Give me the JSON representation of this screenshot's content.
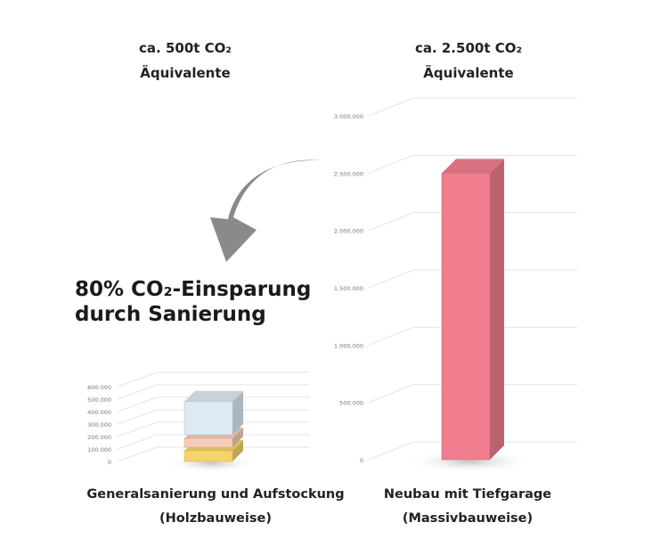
{
  "left_header": {
    "line1": "ca. 500t CO₂",
    "line2": "Äquivalente"
  },
  "right_header": {
    "line1": "ca. 2.500t CO₂",
    "line2": "Äquivalente"
  },
  "headline": {
    "line1": "80% CO₂-Einsparung",
    "line2": "durch Sanierung"
  },
  "left_caption": {
    "line1": "Generalsanierung und Aufstockung",
    "line2": "(Holzbauweise)"
  },
  "right_caption": {
    "line1": "Neubau mit Tiefgarage",
    "line2": "(Massivbauweise)"
  },
  "colors": {
    "arrow": "#8a8a8a",
    "left_top": "#dde9f3",
    "left_mid": "#f6cdb6",
    "left_bottom": "#f7d46a",
    "right_bar": "#f07e8e"
  },
  "chart_data": [
    {
      "type": "bar",
      "stacked": true,
      "title": "",
      "xlabel": "",
      "ylabel": "",
      "ylim": [
        0,
        600000
      ],
      "yticks": [
        0,
        100000,
        200000,
        300000,
        400000,
        500000,
        600000
      ],
      "ytick_labels": [
        "0",
        "100.000",
        "200.000",
        "300.000",
        "400.000",
        "500.000",
        "600.000"
      ],
      "grid": true,
      "legend": "none",
      "categories": [
        "Generalsanierung und Aufstockung"
      ],
      "series": [
        {
          "values": [
            100000
          ],
          "color": "#f7d46a"
        },
        {
          "values": [
            100000
          ],
          "color": "#f6cdb6"
        },
        {
          "values": [
            280000
          ],
          "color": "#dde9f3"
        }
      ]
    },
    {
      "type": "bar",
      "title": "",
      "xlabel": "",
      "ylabel": "",
      "ylim": [
        0,
        3000000
      ],
      "yticks": [
        0,
        500000,
        1000000,
        1500000,
        2000000,
        2500000,
        3000000
      ],
      "ytick_labels": [
        "0",
        "500.000",
        "1.000.000",
        "1.500.000",
        "2.000.000",
        "2.500.000",
        "3.000.000"
      ],
      "grid": true,
      "legend": "none",
      "categories": [
        "Neubau mit Tiefgarage"
      ],
      "series": [
        {
          "values": [
            2500000
          ],
          "color": "#f07e8e"
        }
      ]
    }
  ]
}
